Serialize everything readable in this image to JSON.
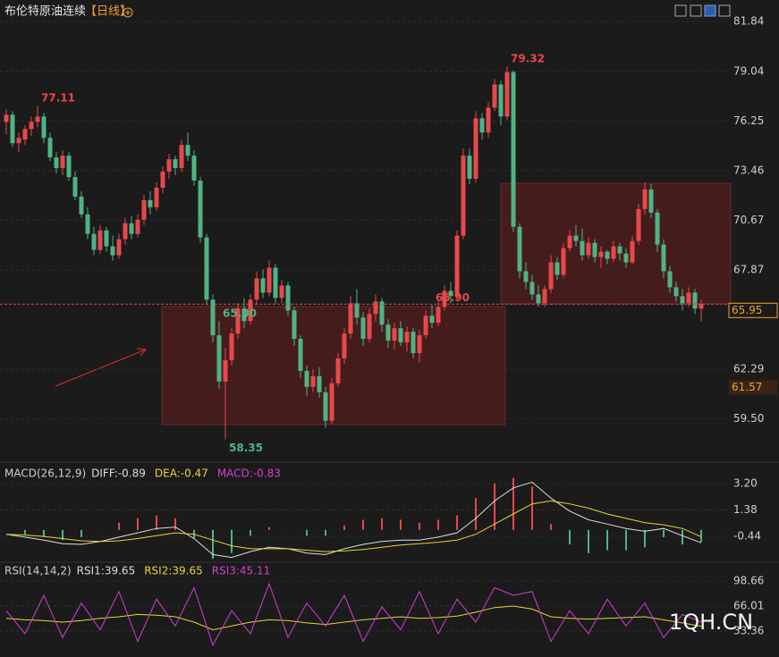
{
  "header": {
    "title": "布伦特原油连续",
    "period": "【日线】"
  },
  "watermark": "1QH.CN",
  "chart_data": [
    {
      "type": "candlestick",
      "up_color": "#e8484b",
      "down_color": "#4fb385",
      "grid": true,
      "ylim": [
        57.17,
        83.05
      ],
      "yticks": [
        81.84,
        79.04,
        76.25,
        73.46,
        70.67,
        67.87,
        62.29,
        {
          "value": 59.5,
          "label": "59.50"
        }
      ],
      "candles": [
        [
          76.2,
          76.9,
          75.5,
          76.6
        ],
        [
          76.6,
          76.8,
          74.8,
          75.0
        ],
        [
          75.0,
          75.6,
          74.5,
          75.3
        ],
        [
          75.2,
          76.0,
          74.9,
          75.8
        ],
        [
          75.8,
          76.5,
          75.4,
          76.2
        ],
        [
          76.2,
          77.11,
          75.9,
          76.5
        ],
        [
          76.5,
          76.7,
          75.0,
          75.3
        ],
        [
          75.3,
          75.6,
          74.0,
          74.2
        ],
        [
          74.2,
          74.5,
          73.3,
          73.6
        ],
        [
          73.6,
          74.6,
          73.2,
          74.3
        ],
        [
          74.3,
          74.5,
          72.9,
          73.1
        ],
        [
          73.1,
          73.4,
          71.8,
          72.0
        ],
        [
          72.0,
          72.3,
          70.8,
          71.0
        ],
        [
          71.0,
          71.4,
          69.6,
          69.9
        ],
        [
          69.9,
          70.3,
          68.7,
          69.0
        ],
        [
          69.0,
          70.4,
          68.8,
          70.1
        ],
        [
          70.1,
          70.3,
          68.9,
          69.2
        ],
        [
          69.2,
          69.8,
          68.4,
          68.7
        ],
        [
          68.7,
          69.9,
          68.5,
          69.6
        ],
        [
          69.6,
          70.8,
          69.3,
          70.5
        ],
        [
          70.5,
          70.9,
          69.6,
          69.9
        ],
        [
          69.9,
          71.0,
          69.7,
          70.7
        ],
        [
          70.7,
          72.1,
          70.4,
          71.8
        ],
        [
          71.8,
          72.3,
          71.0,
          71.4
        ],
        [
          71.4,
          72.8,
          71.2,
          72.5
        ],
        [
          72.5,
          73.7,
          72.2,
          73.4
        ],
        [
          73.4,
          74.4,
          73.0,
          74.1
        ],
        [
          74.1,
          74.3,
          73.2,
          73.6
        ],
        [
          73.6,
          75.2,
          73.4,
          74.9
        ],
        [
          74.9,
          75.6,
          74.0,
          74.3
        ],
        [
          74.3,
          74.6,
          72.6,
          72.9
        ],
        [
          72.9,
          73.1,
          69.4,
          69.7
        ],
        [
          69.7,
          69.9,
          65.9,
          66.2
        ],
        [
          66.2,
          66.5,
          63.8,
          64.2
        ],
        [
          64.2,
          65.0,
          61.2,
          61.6
        ],
        [
          61.6,
          63.5,
          58.35,
          62.8
        ],
        [
          62.8,
          64.6,
          62.5,
          64.3
        ],
        [
          64.3,
          66.0,
          64.0,
          65.7
        ],
        [
          65.7,
          66.3,
          64.6,
          65.0
        ],
        [
          65.0,
          66.5,
          64.8,
          66.2
        ],
        [
          66.2,
          67.8,
          65.9,
          67.4
        ],
        [
          67.4,
          67.9,
          66.3,
          66.6
        ],
        [
          66.6,
          68.4,
          66.4,
          68.0
        ],
        [
          68.0,
          68.2,
          66.0,
          66.3
        ],
        [
          66.3,
          67.3,
          66.0,
          67.0
        ],
        [
          67.0,
          67.2,
          65.3,
          65.6
        ],
        [
          65.6,
          65.8,
          63.6,
          64.0
        ],
        [
          64.0,
          64.2,
          61.8,
          62.2
        ],
        [
          62.2,
          62.5,
          60.8,
          61.3
        ],
        [
          61.3,
          62.3,
          61.0,
          61.9
        ],
        [
          61.9,
          62.4,
          60.7,
          61.0
        ],
        [
          61.0,
          61.3,
          59.0,
          59.4
        ],
        [
          59.4,
          61.8,
          59.2,
          61.5
        ],
        [
          61.5,
          63.2,
          61.3,
          62.9
        ],
        [
          62.9,
          64.6,
          62.6,
          64.3
        ],
        [
          64.3,
          66.4,
          64.0,
          66.0
        ],
        [
          66.0,
          66.8,
          64.8,
          65.2
        ],
        [
          65.2,
          65.5,
          63.6,
          64.0
        ],
        [
          64.0,
          65.7,
          63.8,
          65.4
        ],
        [
          65.4,
          66.5,
          65.0,
          66.1
        ],
        [
          66.1,
          66.3,
          64.4,
          64.8
        ],
        [
          64.8,
          65.1,
          63.5,
          63.9
        ],
        [
          63.9,
          64.9,
          63.4,
          64.6
        ],
        [
          64.6,
          65.0,
          63.6,
          63.8
        ],
        [
          63.8,
          64.7,
          63.3,
          64.4
        ],
        [
          64.4,
          64.6,
          62.9,
          63.2
        ],
        [
          63.2,
          64.5,
          62.7,
          64.2
        ],
        [
          64.2,
          65.6,
          64.0,
          65.3
        ],
        [
          65.3,
          65.9,
          64.6,
          64.9
        ],
        [
          64.9,
          66.1,
          64.7,
          65.8
        ],
        [
          65.8,
          67.0,
          65.6,
          66.7
        ],
        [
          66.7,
          67.2,
          66.0,
          66.4
        ],
        [
          66.4,
          70.1,
          66.2,
          69.8
        ],
        [
          69.8,
          74.7,
          69.6,
          74.3
        ],
        [
          74.3,
          74.7,
          72.7,
          73.0
        ],
        [
          73.0,
          76.8,
          72.8,
          76.4
        ],
        [
          76.4,
          76.7,
          75.2,
          75.6
        ],
        [
          75.6,
          77.3,
          75.3,
          77.0
        ],
        [
          77.0,
          78.6,
          76.8,
          78.3
        ],
        [
          78.3,
          78.5,
          76.0,
          76.5
        ],
        [
          76.5,
          79.32,
          76.3,
          79.0
        ],
        [
          79.0,
          79.1,
          70.0,
          70.3
        ],
        [
          70.3,
          70.5,
          67.4,
          67.8
        ],
        [
          67.8,
          68.3,
          66.8,
          67.2
        ],
        [
          67.2,
          67.6,
          66.2,
          66.5
        ],
        [
          66.5,
          67.0,
          65.8,
          66.0
        ],
        [
          66.0,
          67.0,
          65.8,
          66.8
        ],
        [
          66.8,
          68.7,
          66.6,
          68.3
        ],
        [
          68.3,
          68.6,
          67.3,
          67.6
        ],
        [
          67.6,
          69.4,
          67.4,
          69.1
        ],
        [
          69.1,
          70.1,
          68.9,
          69.8
        ],
        [
          69.8,
          70.4,
          69.2,
          69.5
        ],
        [
          69.5,
          70.2,
          68.4,
          68.7
        ],
        [
          68.7,
          69.7,
          68.5,
          69.4
        ],
        [
          69.4,
          69.6,
          68.3,
          68.6
        ],
        [
          68.6,
          69.2,
          68.0,
          68.9
        ],
        [
          68.9,
          69.0,
          68.2,
          68.5
        ],
        [
          68.5,
          69.5,
          68.3,
          69.2
        ],
        [
          69.2,
          69.4,
          68.4,
          68.8
        ],
        [
          68.8,
          69.1,
          68.0,
          68.3
        ],
        [
          68.3,
          69.8,
          68.2,
          69.5
        ],
        [
          69.5,
          71.6,
          69.3,
          71.3
        ],
        [
          71.3,
          72.8,
          71.0,
          72.4
        ],
        [
          72.4,
          72.7,
          70.8,
          71.1
        ],
        [
          71.1,
          71.3,
          68.9,
          69.3
        ],
        [
          69.3,
          69.6,
          67.4,
          67.8
        ],
        [
          67.8,
          68.1,
          66.6,
          66.9
        ],
        [
          66.9,
          67.2,
          66.1,
          66.4
        ],
        [
          66.4,
          66.8,
          65.6,
          66.0
        ],
        [
          66.0,
          66.9,
          65.8,
          66.6
        ],
        [
          66.6,
          66.8,
          65.4,
          65.7
        ],
        [
          65.7,
          66.2,
          65.0,
          65.95
        ]
      ],
      "annotations": [
        {
          "value": 77.11,
          "color": "#e8484b"
        },
        {
          "value": 79.32,
          "color": "#e8484b"
        },
        {
          "value": 58.35,
          "color": "#4fb385"
        },
        {
          "value": 65.9,
          "label": "65.90",
          "color": "#e8484b"
        },
        {
          "value": 65.0,
          "label": "65.00",
          "color": "#4fb385"
        }
      ],
      "last_price": 65.95,
      "last_color": "#f0a030",
      "cursor_price": 61.57
    },
    {
      "type": "macd",
      "title": "MACD(26,12,9)",
      "legend": [
        {
          "text": "DIFF:-0.89",
          "color": "#dddddd"
        },
        {
          "text": "DEA:-0.47",
          "color": "#e6d33a"
        },
        {
          "text": "MACD:-0.83",
          "color": "#d040d0"
        }
      ],
      "ylim": [
        -2.11,
        4.31
      ],
      "yticks": [
        {
          "value": 3.2,
          "label": "3.20"
        },
        1.38,
        -0.44
      ],
      "series": [
        {
          "color": "#dddddd",
          "values": [
            -0.3,
            -0.5,
            -0.7,
            -0.95,
            -1.0,
            -0.8,
            -0.5,
            -0.2,
            0.1,
            0.2,
            -0.6,
            -1.7,
            -1.9,
            -1.5,
            -1.2,
            -1.3,
            -1.6,
            -1.7,
            -1.3,
            -1.0,
            -0.8,
            -0.7,
            -0.7,
            -0.5,
            -0.2,
            0.8,
            2.0,
            2.9,
            3.3,
            2.2,
            1.3,
            0.7,
            0.4,
            0.1,
            -0.1,
            0.1,
            -0.4,
            -0.89
          ]
        },
        {
          "color": "#e6d33a",
          "values": [
            -0.3,
            -0.35,
            -0.45,
            -0.6,
            -0.75,
            -0.8,
            -0.75,
            -0.6,
            -0.4,
            -0.2,
            -0.3,
            -0.7,
            -1.1,
            -1.3,
            -1.3,
            -1.3,
            -1.4,
            -1.5,
            -1.45,
            -1.35,
            -1.2,
            -1.05,
            -0.95,
            -0.85,
            -0.7,
            -0.3,
            0.4,
            1.1,
            1.8,
            2.0,
            1.8,
            1.5,
            1.1,
            0.8,
            0.5,
            0.35,
            0.1,
            -0.47
          ]
        }
      ],
      "histogram": {
        "up_color": "#e8484b",
        "down_color": "#4fb385",
        "values": [
          0,
          -0.3,
          -0.5,
          -0.7,
          -0.5,
          0,
          0.5,
          0.8,
          1.0,
          0.8,
          -0.6,
          -2.0,
          -1.6,
          -0.4,
          0.2,
          0,
          -0.4,
          -0.4,
          0.3,
          0.7,
          0.8,
          0.7,
          0.5,
          0.7,
          1.0,
          2.2,
          3.2,
          3.6,
          3.0,
          0.4,
          -1.0,
          -1.6,
          -1.4,
          -1.4,
          -1.2,
          -0.5,
          -1.0,
          -0.83
        ]
      }
    },
    {
      "type": "rsi",
      "title": "RSI(14,14,2)",
      "legend": [
        {
          "text": "RSI1:39.65",
          "color": "#dddddd"
        },
        {
          "text": "RSI2:39.65",
          "color": "#e6d33a"
        },
        {
          "text": "RSI3:45.11",
          "color": "#d040d0"
        }
      ],
      "ylim": [
        -0.45,
        116.15
      ],
      "yticks": [
        98.66,
        66.01,
        33.36
      ],
      "series": [
        {
          "color": "#e6d33a",
          "values": [
            50,
            48,
            47,
            45,
            47,
            50,
            52,
            55,
            54,
            52,
            45,
            35,
            40,
            45,
            48,
            47,
            44,
            42,
            45,
            48,
            50,
            52,
            50,
            51,
            53,
            58,
            64,
            66,
            62,
            52,
            50,
            49,
            50,
            51,
            52,
            48,
            44,
            39.65
          ]
        },
        {
          "color": "#d040d0",
          "values": [
            60,
            30,
            80,
            25,
            70,
            35,
            85,
            20,
            75,
            40,
            90,
            15,
            60,
            30,
            95,
            25,
            70,
            40,
            80,
            20,
            65,
            35,
            85,
            30,
            75,
            45,
            90,
            80,
            85,
            20,
            60,
            30,
            75,
            40,
            70,
            25,
            55,
            45.11
          ]
        }
      ]
    }
  ]
}
